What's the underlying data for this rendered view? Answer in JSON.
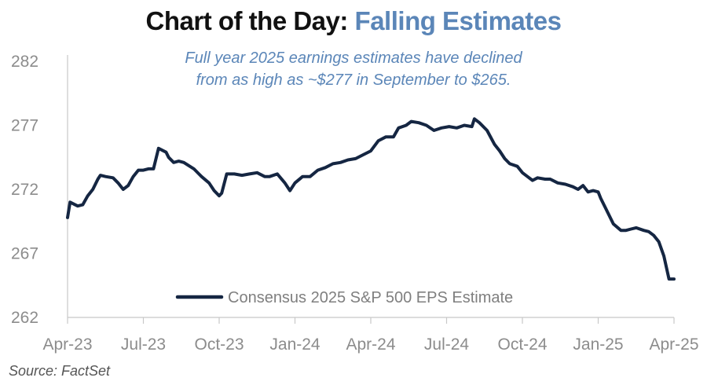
{
  "title": {
    "prefix": "Chart of the Day:",
    "accent": "Falling Estimates"
  },
  "source": "Source: FactSet",
  "colors": {
    "line": "#152642",
    "accent": "#5b86b8",
    "axis": "#c8c8c8",
    "tick_text": "#8c8c8c"
  },
  "chart_data": {
    "type": "line",
    "title": "Chart of the Day: Falling Estimates",
    "xlabel": "",
    "ylabel": "",
    "ylim": [
      262,
      282
    ],
    "yticks": [
      262,
      267,
      272,
      277,
      282
    ],
    "xlim": [
      0,
      24
    ],
    "xticks": [
      {
        "x": 0,
        "label": "Apr-23"
      },
      {
        "x": 3,
        "label": "Jul-23"
      },
      {
        "x": 6,
        "label": "Oct-23"
      },
      {
        "x": 9,
        "label": "Jan-24"
      },
      {
        "x": 12,
        "label": "Apr-24"
      },
      {
        "x": 15,
        "label": "Jul-24"
      },
      {
        "x": 18,
        "label": "Oct-24"
      },
      {
        "x": 21,
        "label": "Jan-25"
      },
      {
        "x": 24,
        "label": "Apr-25"
      }
    ],
    "annotation": [
      "Full year 2025 earnings estimates have declined",
      "from as high as ~$277 in September to $265."
    ],
    "legend": {
      "position": "bottom-center",
      "label": "Consensus 2025 S&P 500 EPS Estimate"
    },
    "series": [
      {
        "name": "Consensus 2025 S&P 500 EPS Estimate",
        "x": [
          0.0,
          0.1,
          0.2,
          0.4,
          0.6,
          0.8,
          1.0,
          1.2,
          1.3,
          1.5,
          1.8,
          2.0,
          2.2,
          2.4,
          2.6,
          2.8,
          3.0,
          3.2,
          3.4,
          3.6,
          3.9,
          4.0,
          4.2,
          4.4,
          4.6,
          5.0,
          5.3,
          5.6,
          5.8,
          6.0,
          6.1,
          6.3,
          6.6,
          6.9,
          7.2,
          7.5,
          7.8,
          8.0,
          8.3,
          8.6,
          8.8,
          9.0,
          9.3,
          9.6,
          9.9,
          10.2,
          10.5,
          10.8,
          11.1,
          11.4,
          11.7,
          12.0,
          12.3,
          12.6,
          12.9,
          13.1,
          13.4,
          13.6,
          13.9,
          14.2,
          14.5,
          14.8,
          15.1,
          15.4,
          15.7,
          16.0,
          16.1,
          16.3,
          16.6,
          16.9,
          17.1,
          17.3,
          17.5,
          17.8,
          18.0,
          18.2,
          18.4,
          18.6,
          18.9,
          19.1,
          19.4,
          19.7,
          20.0,
          20.2,
          20.4,
          20.6,
          20.8,
          21.0,
          21.1,
          21.3,
          21.6,
          21.9,
          22.1,
          22.3,
          22.5,
          22.8,
          23.0,
          23.2,
          23.4,
          23.6,
          23.8,
          24.0
        ],
        "values": [
          269.8,
          271.0,
          270.9,
          270.7,
          270.8,
          271.5,
          272.0,
          272.8,
          273.1,
          273.0,
          272.9,
          272.5,
          272.0,
          272.3,
          273.0,
          273.5,
          273.5,
          273.6,
          273.6,
          275.2,
          274.9,
          274.5,
          274.1,
          274.2,
          274.1,
          273.6,
          273.0,
          272.5,
          271.9,
          271.5,
          271.7,
          273.2,
          273.2,
          273.1,
          273.2,
          273.3,
          273.0,
          273.0,
          273.2,
          272.5,
          271.9,
          272.5,
          273.0,
          273.0,
          273.5,
          273.7,
          274.0,
          274.1,
          274.3,
          274.4,
          274.7,
          275.0,
          275.8,
          276.1,
          276.1,
          276.8,
          277.0,
          277.3,
          277.2,
          277.0,
          276.6,
          276.8,
          276.9,
          276.8,
          277.0,
          276.9,
          277.5,
          277.2,
          276.6,
          275.5,
          275.0,
          274.4,
          274.0,
          273.8,
          273.3,
          273.0,
          272.7,
          272.9,
          272.8,
          272.8,
          272.5,
          272.4,
          272.2,
          272.0,
          272.3,
          271.8,
          271.9,
          271.8,
          271.3,
          270.5,
          269.3,
          268.8,
          268.8,
          268.9,
          269.0,
          268.8,
          268.7,
          268.4,
          267.9,
          266.8,
          265.0,
          265.0
        ]
      }
    ]
  }
}
